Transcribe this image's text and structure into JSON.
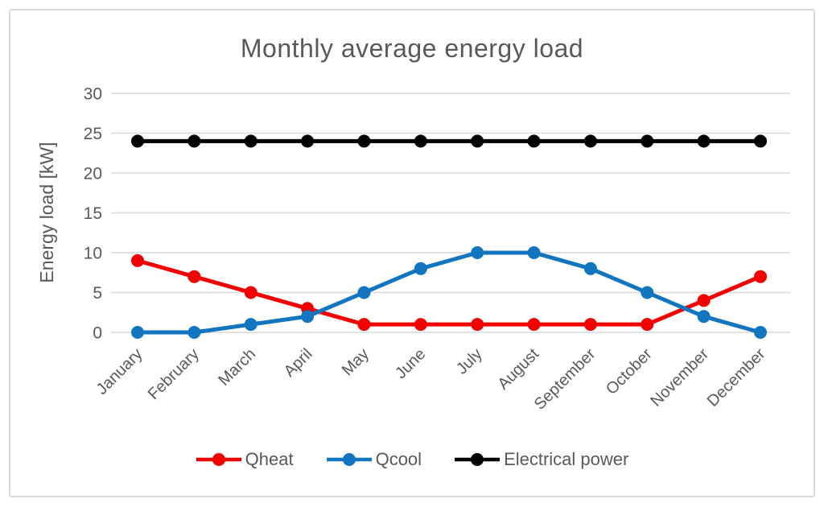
{
  "chart_data": {
    "type": "line",
    "title": "Monthly average energy load",
    "xlabel": "",
    "ylabel": "Energy load [kW]",
    "categories": [
      "January",
      "February",
      "March",
      "April",
      "May",
      "June",
      "July",
      "August",
      "September",
      "October",
      "November",
      "December"
    ],
    "series": [
      {
        "name": "Qheat",
        "color": "#f20000",
        "values": [
          9,
          7,
          5,
          3,
          1,
          1,
          1,
          1,
          1,
          1,
          4,
          7
        ]
      },
      {
        "name": "Qcool",
        "color": "#1175bf",
        "values": [
          0,
          0,
          1,
          2,
          5,
          8,
          10,
          10,
          8,
          5,
          2,
          0
        ]
      },
      {
        "name": "Electrical power",
        "color": "#000000",
        "values": [
          24,
          24,
          24,
          24,
          24,
          24,
          24,
          24,
          24,
          24,
          24,
          24
        ]
      }
    ],
    "ylim": [
      0,
      30
    ],
    "ytick_interval": 5,
    "yticks": [
      0,
      5,
      10,
      15,
      20,
      25,
      30
    ],
    "grid": "horizontal-only",
    "legend_position": "bottom"
  },
  "style": {
    "text_color": "#595959",
    "gridline_color": "#d9d9d9",
    "frame_border_color": "#d9d9d9",
    "background": "#ffffff"
  }
}
